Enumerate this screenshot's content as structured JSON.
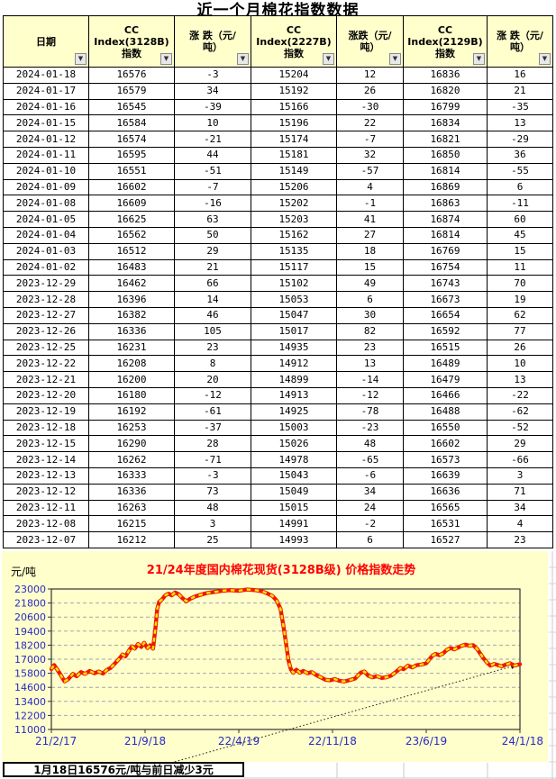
{
  "page_title": "近一个月棉花指数数据",
  "colors": {
    "positive": "#FF0000",
    "negative": "#0077C6",
    "header_bg": "#FFFFCC",
    "chart_bg": "#FFFFCC",
    "axis_text": "#2929C8",
    "chart_title": "#FF0000",
    "series_red": "#F01800",
    "series_yellow": "#FFE600",
    "grid": "#A6A6A6"
  },
  "table": {
    "columns": [
      {
        "label": "日期"
      },
      {
        "label": "CC\nIndex(3128B)\n指数"
      },
      {
        "label": "涨 跌（元/\n吨）"
      },
      {
        "label": "CC\nIndex(2227B)\n指数"
      },
      {
        "label": "涨跌（元/\n吨）"
      },
      {
        "label": "CC\nIndex(2129B)\n指数"
      },
      {
        "label": "涨 跌（元/\n吨）"
      }
    ],
    "rows": [
      [
        "2024-01-18",
        16576,
        -3,
        15204,
        12,
        16836,
        16
      ],
      [
        "2024-01-17",
        16579,
        34,
        15192,
        26,
        16820,
        21
      ],
      [
        "2024-01-16",
        16545,
        -39,
        15166,
        -30,
        16799,
        -35
      ],
      [
        "2024-01-15",
        16584,
        10,
        15196,
        22,
        16834,
        13
      ],
      [
        "2024-01-12",
        16574,
        -21,
        15174,
        -7,
        16821,
        -29
      ],
      [
        "2024-01-11",
        16595,
        44,
        15181,
        32,
        16850,
        36
      ],
      [
        "2024-01-10",
        16551,
        -51,
        15149,
        -57,
        16814,
        -55
      ],
      [
        "2024-01-09",
        16602,
        -7,
        15206,
        4,
        16869,
        6
      ],
      [
        "2024-01-08",
        16609,
        -16,
        15202,
        -1,
        16863,
        -11
      ],
      [
        "2024-01-05",
        16625,
        63,
        15203,
        41,
        16874,
        60
      ],
      [
        "2024-01-04",
        16562,
        50,
        15162,
        27,
        16814,
        45
      ],
      [
        "2024-01-03",
        16512,
        29,
        15135,
        18,
        16769,
        15
      ],
      [
        "2024-01-02",
        16483,
        21,
        15117,
        15,
        16754,
        11
      ],
      [
        "2023-12-29",
        16462,
        66,
        15102,
        49,
        16743,
        70
      ],
      [
        "2023-12-28",
        16396,
        14,
        15053,
        6,
        16673,
        19
      ],
      [
        "2023-12-27",
        16382,
        46,
        15047,
        30,
        16654,
        62
      ],
      [
        "2023-12-26",
        16336,
        105,
        15017,
        82,
        16592,
        77
      ],
      [
        "2023-12-25",
        16231,
        23,
        14935,
        23,
        16515,
        26
      ],
      [
        "2023-12-22",
        16208,
        8,
        14912,
        13,
        16489,
        10
      ],
      [
        "2023-12-21",
        16200,
        20,
        14899,
        -14,
        16479,
        13
      ],
      [
        "2023-12-20",
        16180,
        -12,
        14913,
        -12,
        16466,
        -22
      ],
      [
        "2023-12-19",
        16192,
        -61,
        14925,
        -78,
        16488,
        -62
      ],
      [
        "2023-12-18",
        16253,
        -37,
        15003,
        -23,
        16550,
        -52
      ],
      [
        "2023-12-15",
        16290,
        28,
        15026,
        48,
        16602,
        29
      ],
      [
        "2023-12-14",
        16262,
        -71,
        14978,
        -65,
        16573,
        -66
      ],
      [
        "2023-12-13",
        16333,
        -3,
        15043,
        -6,
        16639,
        3
      ],
      [
        "2023-12-12",
        16336,
        73,
        15049,
        34,
        16636,
        71
      ],
      [
        "2023-12-11",
        16263,
        48,
        15015,
        24,
        16565,
        34
      ],
      [
        "2023-12-08",
        16215,
        3,
        14991,
        -2,
        16531,
        4
      ],
      [
        "2023-12-07",
        16212,
        25,
        14993,
        6,
        16527,
        23
      ]
    ]
  },
  "chart_data": {
    "type": "line",
    "title": "21/24年度国内棉花现货(3128B级) 价格指数走势",
    "ylabel": "元/吨",
    "ylim": [
      11000,
      23000
    ],
    "yticks": [
      23000,
      21800,
      20600,
      19400,
      18200,
      17000,
      15800,
      14600,
      13400,
      12200,
      11000
    ],
    "xticks": [
      "21/2/17",
      "21/9/18",
      "22/4/19",
      "22/11/18",
      "23/6/19",
      "24/1/18"
    ],
    "grid": "horizontal-dashed",
    "legend": "none",
    "series": [
      {
        "name": "国内棉花现货(3128B级)价格指数",
        "points": [
          [
            0.0,
            16150
          ],
          [
            0.006,
            16500
          ],
          [
            0.012,
            16150
          ],
          [
            0.02,
            15650
          ],
          [
            0.028,
            15100
          ],
          [
            0.036,
            15300
          ],
          [
            0.046,
            15750
          ],
          [
            0.054,
            15550
          ],
          [
            0.063,
            15900
          ],
          [
            0.072,
            15750
          ],
          [
            0.082,
            16000
          ],
          [
            0.092,
            15800
          ],
          [
            0.101,
            15950
          ],
          [
            0.11,
            15780
          ],
          [
            0.118,
            16080
          ],
          [
            0.127,
            16280
          ],
          [
            0.136,
            16650
          ],
          [
            0.145,
            17050
          ],
          [
            0.152,
            17400
          ],
          [
            0.158,
            17250
          ],
          [
            0.165,
            17700
          ],
          [
            0.172,
            18100
          ],
          [
            0.178,
            17900
          ],
          [
            0.185,
            18300
          ],
          [
            0.192,
            18050
          ],
          [
            0.198,
            18400
          ],
          [
            0.205,
            17950
          ],
          [
            0.211,
            18200
          ],
          [
            0.217,
            17900
          ],
          [
            0.222,
            19600
          ],
          [
            0.226,
            21300
          ],
          [
            0.23,
            21900
          ],
          [
            0.236,
            22100
          ],
          [
            0.243,
            22450
          ],
          [
            0.25,
            22600
          ],
          [
            0.257,
            22450
          ],
          [
            0.264,
            22700
          ],
          [
            0.272,
            22550
          ],
          [
            0.28,
            22200
          ],
          [
            0.288,
            21950
          ],
          [
            0.296,
            22150
          ],
          [
            0.306,
            22350
          ],
          [
            0.318,
            22500
          ],
          [
            0.332,
            22650
          ],
          [
            0.348,
            22750
          ],
          [
            0.365,
            22850
          ],
          [
            0.382,
            22900
          ],
          [
            0.4,
            22850
          ],
          [
            0.418,
            22950
          ],
          [
            0.435,
            22900
          ],
          [
            0.45,
            22800
          ],
          [
            0.462,
            22600
          ],
          [
            0.472,
            22400
          ],
          [
            0.481,
            22000
          ],
          [
            0.489,
            21300
          ],
          [
            0.495,
            19900
          ],
          [
            0.501,
            18300
          ],
          [
            0.506,
            16900
          ],
          [
            0.511,
            16150
          ],
          [
            0.516,
            15850
          ],
          [
            0.523,
            16100
          ],
          [
            0.53,
            15850
          ],
          [
            0.538,
            16000
          ],
          [
            0.547,
            15800
          ],
          [
            0.556,
            15900
          ],
          [
            0.565,
            15650
          ],
          [
            0.575,
            15450
          ],
          [
            0.585,
            15250
          ],
          [
            0.595,
            15200
          ],
          [
            0.605,
            15300
          ],
          [
            0.615,
            15150
          ],
          [
            0.625,
            15100
          ],
          [
            0.635,
            15200
          ],
          [
            0.648,
            15350
          ],
          [
            0.66,
            15850
          ],
          [
            0.668,
            15950
          ],
          [
            0.676,
            15600
          ],
          [
            0.685,
            15450
          ],
          [
            0.695,
            15550
          ],
          [
            0.705,
            15400
          ],
          [
            0.715,
            15450
          ],
          [
            0.725,
            15600
          ],
          [
            0.735,
            15900
          ],
          [
            0.745,
            16250
          ],
          [
            0.752,
            16150
          ],
          [
            0.761,
            16450
          ],
          [
            0.77,
            16300
          ],
          [
            0.78,
            16500
          ],
          [
            0.79,
            16550
          ],
          [
            0.8,
            16650
          ],
          [
            0.806,
            16950
          ],
          [
            0.813,
            17300
          ],
          [
            0.82,
            17450
          ],
          [
            0.828,
            17350
          ],
          [
            0.836,
            17500
          ],
          [
            0.844,
            17800
          ],
          [
            0.852,
            17950
          ],
          [
            0.86,
            17850
          ],
          [
            0.868,
            18000
          ],
          [
            0.876,
            18150
          ],
          [
            0.884,
            18250
          ],
          [
            0.892,
            18150
          ],
          [
            0.9,
            18200
          ],
          [
            0.908,
            17900
          ],
          [
            0.915,
            17500
          ],
          [
            0.922,
            17100
          ],
          [
            0.93,
            16700
          ],
          [
            0.937,
            16450
          ],
          [
            0.945,
            16600
          ],
          [
            0.953,
            16500
          ],
          [
            0.961,
            16400
          ],
          [
            0.97,
            16550
          ],
          [
            0.979,
            16650
          ],
          [
            0.988,
            16450
          ],
          [
            1.0,
            16576
          ]
        ]
      }
    ],
    "annotation": {
      "text": "1月18日16576元/吨与前日减少3元",
      "arrow": "dotted line from caption box to last data point"
    }
  },
  "caption": {
    "text": "1月18日16576元/吨与前日减少3元"
  }
}
